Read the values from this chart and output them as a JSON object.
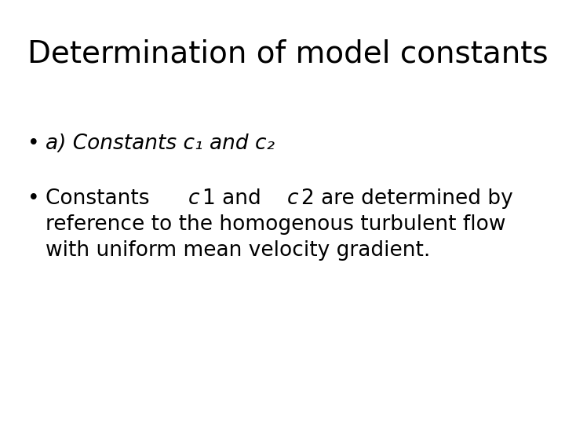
{
  "title": "Determination of model constants",
  "title_fontsize": 28,
  "background_color": "#ffffff",
  "text_color": "#000000",
  "bullet1_italic": "a) Constants c₁ and c₂",
  "bullet2_line2": "reference to the homogenous turbulent flow",
  "bullet2_line3": "with uniform mean velocity gradient.",
  "body_fontsize": 19,
  "bullet_symbol": "•",
  "line2_parts": [
    [
      "Constants ",
      false
    ],
    [
      "c",
      true
    ],
    [
      "1 and ",
      false
    ],
    [
      "c",
      true
    ],
    [
      "2 are determined by",
      false
    ]
  ]
}
